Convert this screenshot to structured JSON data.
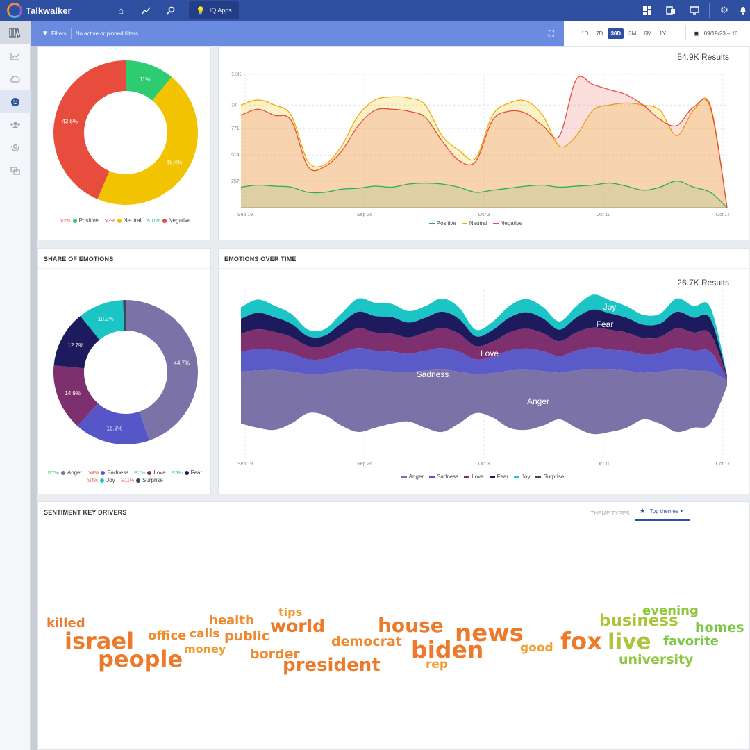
{
  "app": {
    "name": "Talkwalker",
    "iq_apps": "IQ Apps"
  },
  "filters": {
    "label": "Filters",
    "status": "No active or pinned filters."
  },
  "date_ranges": [
    "1D",
    "7D",
    "30D",
    "3M",
    "6M",
    "1Y"
  ],
  "active_range": "30D",
  "date_value": "09/19/23 – 10",
  "sentiment_panel": {
    "results": "54.9K Results",
    "donut": [
      {
        "name": "Positive",
        "value": 11,
        "label": "11%",
        "color": "#2ecc71"
      },
      {
        "name": "Neutral",
        "value": 45.4,
        "label": "45.4%",
        "color": "#f2c300"
      },
      {
        "name": "Negative",
        "value": 43.6,
        "label": "43.6%",
        "color": "#e74c3c"
      }
    ],
    "legend": [
      {
        "delta": "2%",
        "dir": "down",
        "name": "Positive",
        "color": "#2ecc71"
      },
      {
        "delta": "3%",
        "dir": "down",
        "name": "Neutral",
        "color": "#f2c300"
      },
      {
        "delta": "11%",
        "dir": "up",
        "name": "Negative",
        "color": "#e74c3c"
      }
    ],
    "time_legend": [
      {
        "name": "Positive",
        "color": "#27ae60"
      },
      {
        "name": "Neutral",
        "color": "#f2a900"
      },
      {
        "name": "Negative",
        "color": "#e74c3c"
      }
    ]
  },
  "emotion_share": {
    "title": "SHARE OF EMOTIONS",
    "donut": [
      {
        "name": "Anger",
        "value": 44.7,
        "label": "44.7%",
        "color": "#7b72a8"
      },
      {
        "name": "Sadness",
        "value": 16.9,
        "label": "16.9%",
        "color": "#5656c8"
      },
      {
        "name": "Love",
        "value": 14.9,
        "label": "14.9%",
        "color": "#7e2f6e"
      },
      {
        "name": "Fear",
        "value": 12.7,
        "label": "12.7%",
        "color": "#1d1a5e"
      },
      {
        "name": "Joy",
        "value": 10.2,
        "label": "10.2%",
        "color": "#1cc5c5"
      },
      {
        "name": "Surprise",
        "value": 0.6,
        "label": "",
        "color": "#3b4a5a"
      }
    ],
    "legend": [
      {
        "delta": "7%",
        "dir": "up",
        "name": "Anger",
        "color": "#7b72a8"
      },
      {
        "delta": "4%",
        "dir": "down",
        "name": "Sadness",
        "color": "#5656c8"
      },
      {
        "delta": "1%",
        "dir": "up",
        "name": "Love",
        "color": "#7e2f6e"
      },
      {
        "delta": "6%",
        "dir": "up",
        "name": "Fear",
        "color": "#1d1a5e"
      },
      {
        "delta": "4%",
        "dir": "down",
        "name": "Joy",
        "color": "#1cc5c5"
      },
      {
        "delta": "11%",
        "dir": "down",
        "name": "Surprise",
        "color": "#3b4a5a"
      }
    ]
  },
  "emotions_over_time": {
    "title": "EMOTIONS OVER TIME",
    "results": "26.7K Results",
    "stream_labels": [
      "Joy",
      "Fear",
      "Love",
      "Sadness",
      "Anger"
    ],
    "legend": [
      {
        "name": "Anger",
        "color": "#7b72a8"
      },
      {
        "name": "Sadness",
        "color": "#5656c8"
      },
      {
        "name": "Love",
        "color": "#7e2f6e"
      },
      {
        "name": "Fear",
        "color": "#1d1a5e"
      },
      {
        "name": "Joy",
        "color": "#1cc5c5"
      },
      {
        "name": "Surprise",
        "color": "#3b4a5a"
      }
    ]
  },
  "key_drivers": {
    "title": "SENTIMENT KEY DRIVERS",
    "theme_types": "THEME TYPES",
    "top_themes": "Top themes",
    "words": [
      {
        "text": "killed",
        "color": "#ec7a2a"
      },
      {
        "text": "israel",
        "color": "#ec7a2a"
      },
      {
        "text": "people",
        "color": "#ec7a2a"
      },
      {
        "text": "office",
        "color": "#f08c2c"
      },
      {
        "text": "health",
        "color": "#ef8a30"
      },
      {
        "text": "calls",
        "color": "#ef8a30"
      },
      {
        "text": "public",
        "color": "#ef8a30"
      },
      {
        "text": "money",
        "color": "#f09a30"
      },
      {
        "text": "tips",
        "color": "#f09a30"
      },
      {
        "text": "world",
        "color": "#ec7a2a"
      },
      {
        "text": "border",
        "color": "#ef8a30"
      },
      {
        "text": "house",
        "color": "#ec7a2a"
      },
      {
        "text": "democrat",
        "color": "#ef8a30"
      },
      {
        "text": "president",
        "color": "#ec7a2a"
      },
      {
        "text": "news",
        "color": "#ec7a2a"
      },
      {
        "text": "biden",
        "color": "#ec7a2a"
      },
      {
        "text": "rep",
        "color": "#f09a30"
      },
      {
        "text": "good",
        "color": "#f0a030"
      },
      {
        "text": "fox",
        "color": "#ec7a2a"
      },
      {
        "text": "business",
        "color": "#a9c63a"
      },
      {
        "text": "evening",
        "color": "#8dc63f"
      },
      {
        "text": "live",
        "color": "#a9c63a"
      },
      {
        "text": "university",
        "color": "#8dc63f"
      },
      {
        "text": "homes",
        "color": "#7ac943"
      },
      {
        "text": "favorite",
        "color": "#7ac943"
      }
    ]
  },
  "chart_data": [
    {
      "type": "area",
      "ylabel": "",
      "ylim": [
        0,
        1300
      ],
      "y_ticks": [
        "257",
        "514",
        "771",
        "1K",
        "1.3K"
      ],
      "x_ticks": [
        "Sep 19",
        "Sep 26",
        "Oct 3",
        "Oct 10",
        "Oct 17"
      ],
      "series": [
        {
          "name": "Positive",
          "color": "#27ae60",
          "values": [
            200,
            220,
            210,
            200,
            150,
            150,
            180,
            190,
            210,
            200,
            230,
            240,
            230,
            200,
            150,
            170,
            190,
            210,
            220,
            200,
            210,
            220,
            240,
            210,
            170,
            200,
            260,
            200,
            150,
            0
          ]
        },
        {
          "name": "Neutral",
          "color": "#f2a900",
          "values": [
            1000,
            1050,
            1000,
            900,
            450,
            420,
            600,
            900,
            1050,
            1080,
            1070,
            1000,
            700,
            560,
            480,
            900,
            1020,
            1040,
            900,
            600,
            700,
            950,
            1000,
            1020,
            1000,
            950,
            700,
            950,
            1000,
            0
          ]
        },
        {
          "name": "Negative",
          "color": "#e74c3c",
          "values": [
            900,
            960,
            900,
            850,
            400,
            400,
            550,
            800,
            950,
            960,
            940,
            880,
            650,
            460,
            450,
            850,
            940,
            920,
            800,
            700,
            1250,
            1200,
            1150,
            1100,
            1000,
            860,
            800,
            980,
            980,
            0
          ]
        }
      ]
    },
    {
      "type": "area",
      "title": "",
      "stacked": true,
      "x_ticks": [
        "Sep 19",
        "Sep 26",
        "Oct 3",
        "Oct 10",
        "Oct 17"
      ],
      "series": [
        {
          "name": "Anger",
          "values": [
            40,
            44,
            46,
            40,
            30,
            32,
            42,
            48,
            44,
            40,
            38,
            44,
            48,
            40,
            30,
            34,
            44,
            46,
            42,
            36,
            44,
            50,
            48,
            44,
            36,
            40,
            48,
            44,
            40,
            4
          ]
        },
        {
          "name": "Sadness",
          "values": [
            12,
            13,
            12,
            11,
            9,
            9,
            11,
            13,
            12,
            12,
            11,
            12,
            13,
            12,
            9,
            10,
            12,
            13,
            12,
            10,
            12,
            13,
            12,
            12,
            11,
            11,
            13,
            12,
            12,
            1
          ]
        },
        {
          "name": "Love",
          "values": [
            11,
            12,
            11,
            10,
            8,
            8,
            10,
            12,
            11,
            11,
            10,
            11,
            12,
            11,
            8,
            9,
            11,
            12,
            11,
            9,
            11,
            12,
            12,
            11,
            10,
            10,
            12,
            11,
            11,
            1
          ]
        },
        {
          "name": "Fear",
          "values": [
            9,
            10,
            9,
            8,
            6,
            6,
            8,
            10,
            10,
            10,
            9,
            9,
            10,
            9,
            6,
            7,
            9,
            10,
            9,
            7,
            9,
            11,
            10,
            9,
            8,
            8,
            10,
            9,
            9,
            1
          ]
        },
        {
          "name": "Joy",
          "values": [
            7,
            8,
            7,
            6,
            4,
            4,
            6,
            8,
            8,
            8,
            7,
            7,
            8,
            7,
            4,
            5,
            7,
            8,
            7,
            5,
            7,
            9,
            8,
            7,
            6,
            6,
            8,
            7,
            7,
            1
          ]
        }
      ]
    }
  ]
}
